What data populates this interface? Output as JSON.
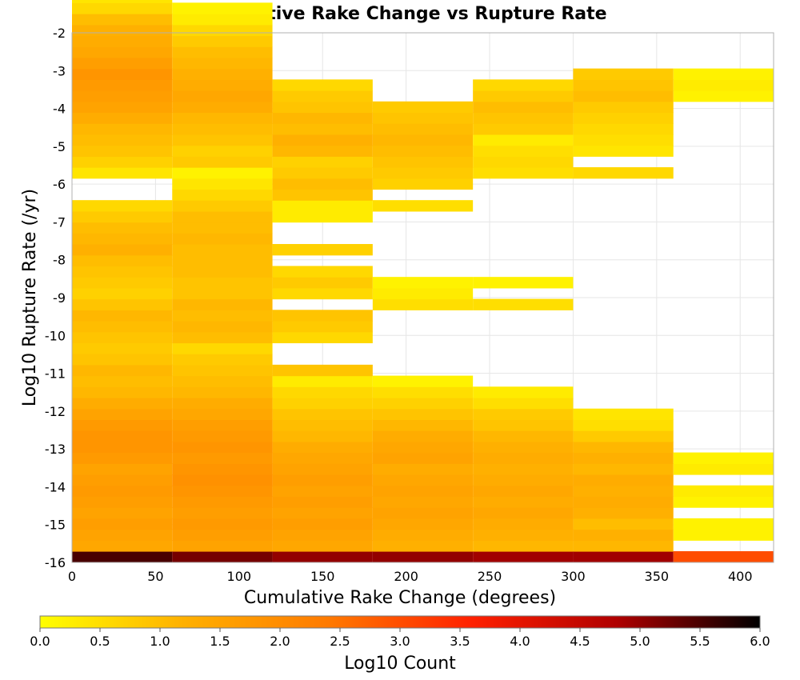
{
  "chart_data": {
    "type": "heatmap",
    "title": "Cumulative Rake Change vs Rupture Rate",
    "xlabel": "Cumulative Rake Change (degrees)",
    "ylabel": "Log10 Rupture Rate (/yr)",
    "xlim": [
      0,
      420
    ],
    "ylim": [
      -16,
      -2
    ],
    "x_ticks": [
      "0",
      "50",
      "100",
      "150",
      "200",
      "250",
      "300",
      "350",
      "400"
    ],
    "y_ticks": [
      "-2",
      "-3",
      "-4",
      "-5",
      "-6",
      "-7",
      "-8",
      "-9",
      "-10",
      "-11",
      "-12",
      "-13",
      "-14",
      "-15",
      "-16"
    ],
    "grid": true,
    "colorbar": {
      "label": "Log10 Count",
      "range": [
        0,
        6
      ],
      "ticks": [
        "0.0",
        "0.5",
        "1.0",
        "1.5",
        "2.0",
        "2.5",
        "3.0",
        "3.5",
        "4.0",
        "4.5",
        "5.0",
        "5.5",
        "6.0"
      ],
      "colors": [
        "#ffff00",
        "#ffb000",
        "#ff7a00",
        "#ff2000",
        "#b00000",
        "#000000"
      ]
    },
    "bin_width_x": 60,
    "bin_height_y": 0.29,
    "columns": [
      {
        "x_start": 0,
        "y_start": -16.0,
        "values": [
          5.5,
          1.4,
          1.5,
          1.6,
          1.5,
          1.6,
          1.7,
          1.6,
          1.5,
          1.7,
          1.8,
          1.8,
          1.7,
          1.5,
          1.3,
          1.1,
          1.0,
          1.1,
          0.9,
          0.8,
          0.9,
          1.0,
          1.1,
          0.9,
          0.7,
          0.8,
          0.9,
          1.0,
          1.2,
          1.1,
          1.0,
          0.8,
          0.6,
          null,
          null,
          0.4,
          0.7,
          0.9,
          1.0,
          1.1,
          1.3,
          1.5,
          1.6,
          1.7,
          1.8,
          1.6,
          1.4,
          1.3,
          1.2,
          1.0,
          0.6,
          0.4,
          0.2
        ]
      },
      {
        "x_start": 60,
        "y_start": -16.0,
        "values": [
          5.2,
          1.5,
          1.6,
          1.7,
          1.6,
          1.7,
          1.8,
          1.9,
          1.8,
          1.7,
          1.8,
          1.7,
          1.6,
          1.4,
          1.3,
          1.1,
          1.0,
          0.9,
          0.8,
          0.6,
          1.0,
          1.1,
          1.0,
          1.1,
          0.9,
          0.9,
          1.0,
          1.0,
          1.0,
          1.1,
          1.0,
          1.0,
          0.8,
          0.6,
          0.4,
          0.2,
          0.8,
          0.7,
          0.9,
          1.0,
          1.1,
          1.3,
          1.4,
          1.3,
          1.2,
          1.1,
          1.0,
          0.8,
          0.6,
          0.3,
          0.2
        ]
      },
      {
        "x_start": 120,
        "y_start": -16.0,
        "values": [
          5.0,
          1.4,
          1.5,
          1.6,
          1.5,
          1.6,
          1.5,
          1.6,
          1.5,
          1.4,
          1.3,
          1.1,
          1.0,
          0.9,
          0.7,
          0.6,
          0.3,
          0.9,
          null,
          null,
          0.6,
          0.8,
          0.9,
          null,
          0.6,
          0.8,
          0.6,
          null,
          0.7,
          null,
          null,
          0.3,
          0.3,
          0.9,
          1.0,
          0.8,
          0.7,
          1.1,
          1.2,
          1.0,
          1.1,
          0.9,
          0.8,
          0.6
        ]
      },
      {
        "x_start": 180,
        "y_start": -16.0,
        "values": [
          5.0,
          1.2,
          1.3,
          1.4,
          1.5,
          1.4,
          1.5,
          1.4,
          1.3,
          1.5,
          1.4,
          1.3,
          1.1,
          0.9,
          0.7,
          0.5,
          0.2,
          null,
          null,
          null,
          null,
          null,
          null,
          0.5,
          0.3,
          0.2,
          null,
          null,
          null,
          null,
          null,
          null,
          0.5,
          null,
          0.7,
          0.8,
          0.9,
          1.0,
          1.1,
          1.0,
          0.9,
          0.8
        ]
      },
      {
        "x_start": 240,
        "y_start": -16.0,
        "values": [
          4.9,
          1.1,
          1.2,
          1.3,
          1.4,
          1.3,
          1.4,
          1.3,
          1.2,
          1.3,
          1.2,
          1.1,
          0.9,
          0.8,
          0.5,
          0.3,
          null,
          null,
          null,
          null,
          null,
          null,
          null,
          0.5,
          null,
          0.2,
          null,
          null,
          null,
          null,
          null,
          null,
          null,
          null,
          null,
          0.5,
          0.6,
          0.5,
          0.3,
          0.8,
          0.9,
          1.0,
          0.8,
          0.6
        ]
      },
      {
        "x_start": 300,
        "y_start": -16.0,
        "values": [
          4.9,
          1.1,
          1.2,
          1.0,
          1.2,
          1.3,
          1.2,
          1.3,
          1.1,
          1.2,
          1.1,
          0.8,
          0.5,
          0.4,
          null,
          null,
          null,
          null,
          null,
          null,
          null,
          null,
          null,
          null,
          null,
          null,
          null,
          null,
          null,
          null,
          null,
          null,
          null,
          null,
          null,
          0.6,
          null,
          0.4,
          0.5,
          0.6,
          0.7,
          0.8,
          1.0,
          0.9,
          0.8
        ]
      },
      {
        "x_start": 360,
        "y_start": -16.0,
        "values": [
          3.0,
          null,
          0.2,
          0.2,
          null,
          0.2,
          0.3,
          null,
          0.3,
          0.2,
          null,
          null,
          null,
          null,
          null,
          null,
          null,
          null,
          null,
          null,
          null,
          null,
          null,
          null,
          null,
          null,
          null,
          null,
          null,
          null,
          null,
          null,
          null,
          null,
          null,
          null,
          null,
          null,
          null,
          null,
          null,
          null,
          0.2,
          0.3,
          0.2
        ]
      }
    ]
  }
}
